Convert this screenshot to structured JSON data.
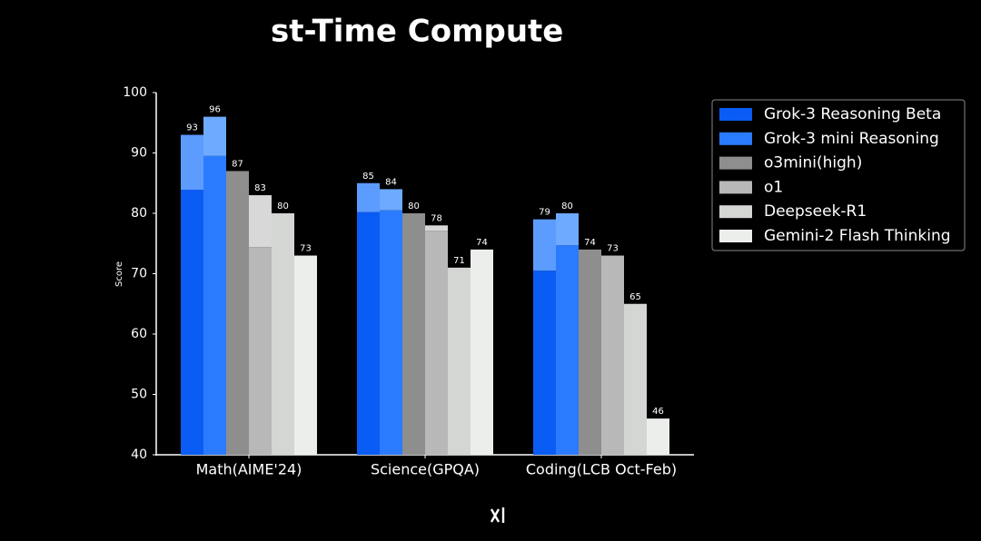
{
  "chart_data": {
    "type": "bar",
    "title": "st-Time Compute",
    "y_label": "Score",
    "categories": [
      "Math(AIME'24)",
      "Science(GPQA)",
      "Coding(LCB Oct-Feb)"
    ],
    "series": [
      {
        "name": "Grok-3 Reasoning Beta",
        "color": "#0a5cf5",
        "top_color": "#5c9cff",
        "values": [
          93,
          85,
          79
        ],
        "low_values": [
          83.9,
          80.2,
          70.5
        ]
      },
      {
        "name": "Grok-3 mini Reasoning",
        "color": "#2a7bff",
        "top_color": "#6eaaff",
        "values": [
          96,
          84,
          80
        ],
        "low_values": [
          89.5,
          80.5,
          74.7
        ]
      },
      {
        "name": "o3mini(high)",
        "color": "#8e8e8e",
        "values": [
          87,
          80,
          74
        ]
      },
      {
        "name": "o1",
        "color": "#b8b8b8",
        "top_color": "#d8d8d8",
        "values": [
          83,
          78,
          73
        ],
        "low_values": [
          74.4,
          77.1,
          null
        ]
      },
      {
        "name": "Deepseek-R1",
        "color": "#d3d6d3",
        "values": [
          80,
          71,
          65
        ]
      },
      {
        "name": "Gemini-2 Flash Thinking",
        "color": "#eceeec",
        "values": [
          73,
          74,
          46
        ]
      }
    ],
    "ylim": [
      40,
      100
    ],
    "yticks": [
      40,
      50,
      60,
      70,
      80,
      90,
      100
    ],
    "grid": false,
    "legend": "right"
  }
}
